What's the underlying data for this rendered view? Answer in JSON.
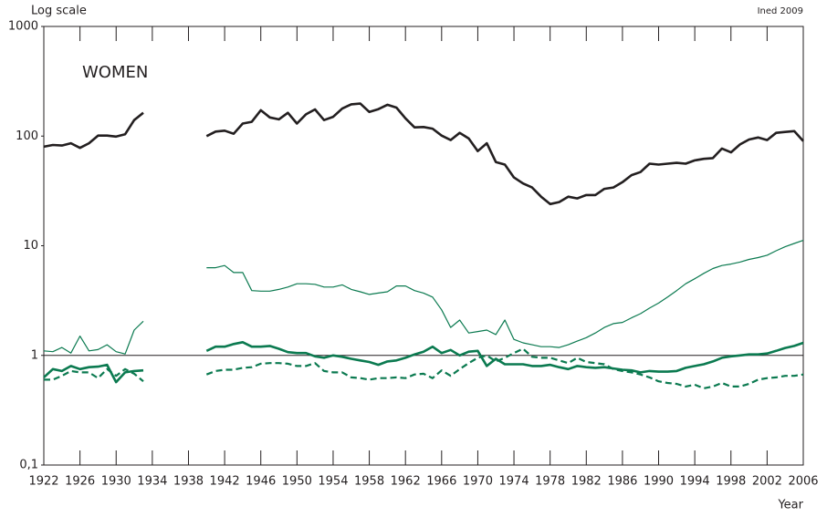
{
  "chart_data": {
    "type": "line",
    "title": "WOMEN",
    "y_axis_label": "Log scale",
    "x_axis_label": "Year",
    "source": "Ined 2009",
    "log_scale": true,
    "grid": false,
    "reference_line": 1,
    "xlim": [
      1922,
      2006
    ],
    "xticks": [
      1922,
      1926,
      1930,
      1934,
      1938,
      1942,
      1946,
      1950,
      1954,
      1958,
      1962,
      1966,
      1970,
      1974,
      1978,
      1982,
      1986,
      1990,
      1994,
      1998,
      2002,
      2006
    ],
    "ylim": [
      0.1,
      1000
    ],
    "yticks": [
      {
        "value": 0.1,
        "label": "0,1"
      },
      1,
      10,
      100,
      1000
    ],
    "x": [
      1922,
      1923,
      1924,
      1925,
      1926,
      1927,
      1928,
      1929,
      1930,
      1931,
      1932,
      1933,
      1934,
      1935,
      1936,
      1937,
      1938,
      1939,
      1940,
      1941,
      1942,
      1943,
      1944,
      1945,
      1946,
      1947,
      1948,
      1949,
      1950,
      1951,
      1952,
      1953,
      1954,
      1955,
      1956,
      1957,
      1958,
      1959,
      1960,
      1961,
      1962,
      1963,
      1964,
      1965,
      1966,
      1967,
      1968,
      1969,
      1970,
      1971,
      1972,
      1973,
      1974,
      1975,
      1976,
      1977,
      1978,
      1979,
      1980,
      1981,
      1982,
      1983,
      1984,
      1985,
      1986,
      1987,
      1988,
      1989,
      1990,
      1991,
      1992,
      1993,
      1994,
      1995,
      1996,
      1997,
      1998,
      1999,
      2000,
      2001,
      2002,
      2003,
      2004,
      2005,
      2006
    ],
    "series": [
      {
        "color": "#231f20",
        "line_width": 2.6,
        "dashed": false,
        "values": [
          80,
          83,
          82,
          86,
          78,
          86,
          101,
          101,
          99,
          104,
          140,
          163,
          null,
          null,
          null,
          null,
          null,
          null,
          100,
          110,
          112,
          105,
          130,
          135,
          172,
          148,
          142,
          163,
          130,
          158,
          175,
          140,
          150,
          178,
          195,
          198,
          166,
          176,
          193,
          182,
          145,
          120,
          121,
          117,
          101,
          92,
          107,
          95,
          73,
          86,
          58,
          55,
          42,
          37,
          34,
          28,
          24,
          25,
          28,
          27,
          29,
          29,
          33,
          34,
          38,
          44,
          47,
          56,
          55,
          56,
          57,
          56,
          60,
          62,
          63,
          77,
          71,
          84,
          93,
          97,
          92,
          107,
          109,
          111,
          90
        ]
      },
      {
        "color": "#0b7a50",
        "line_width": 1.2,
        "dashed": false,
        "values": [
          1.1,
          1.08,
          1.18,
          1.05,
          1.5,
          1.1,
          1.13,
          1.25,
          1.08,
          1.03,
          1.7,
          2.05,
          null,
          null,
          null,
          null,
          null,
          null,
          6.3,
          6.3,
          6.6,
          5.7,
          5.7,
          3.9,
          3.85,
          3.85,
          4.0,
          4.2,
          4.5,
          4.5,
          4.45,
          4.2,
          4.2,
          4.4,
          4.0,
          3.8,
          3.6,
          3.7,
          3.8,
          4.3,
          4.3,
          3.9,
          3.7,
          3.4,
          2.6,
          1.8,
          2.1,
          1.6,
          1.65,
          1.7,
          1.55,
          2.1,
          1.4,
          1.3,
          1.25,
          1.2,
          1.2,
          1.18,
          1.25,
          1.35,
          1.45,
          1.6,
          1.8,
          1.95,
          2.0,
          2.2,
          2.4,
          2.7,
          3.0,
          3.4,
          3.9,
          4.5,
          5.0,
          5.6,
          6.2,
          6.6,
          6.8,
          7.1,
          7.5,
          7.8,
          8.2,
          9.0,
          9.8,
          10.5,
          11.2
        ]
      },
      {
        "color": "#0b7a50",
        "line_width": 2.6,
        "dashed": false,
        "values": [
          0.63,
          0.75,
          0.72,
          0.8,
          0.75,
          0.78,
          0.79,
          0.82,
          0.57,
          0.7,
          0.72,
          0.73,
          null,
          null,
          null,
          null,
          null,
          null,
          1.1,
          1.2,
          1.2,
          1.27,
          1.32,
          1.2,
          1.2,
          1.22,
          1.15,
          1.07,
          1.05,
          1.05,
          0.98,
          0.95,
          1.0,
          0.97,
          0.93,
          0.9,
          0.87,
          0.82,
          0.88,
          0.9,
          0.95,
          1.02,
          1.08,
          1.2,
          1.05,
          1.12,
          1.0,
          1.08,
          1.1,
          0.8,
          0.93,
          0.83,
          0.83,
          0.83,
          0.8,
          0.8,
          0.82,
          0.78,
          0.75,
          0.8,
          0.78,
          0.77,
          0.78,
          0.76,
          0.74,
          0.73,
          0.7,
          0.72,
          0.71,
          0.71,
          0.72,
          0.77,
          0.8,
          0.83,
          0.88,
          0.95,
          0.98,
          1.0,
          1.02,
          1.02,
          1.04,
          1.1,
          1.17,
          1.22,
          1.3
        ]
      },
      {
        "color": "#0b7a50",
        "line_width": 2.2,
        "dashed": true,
        "values": [
          0.6,
          0.6,
          0.65,
          0.72,
          0.7,
          0.7,
          0.62,
          0.75,
          0.65,
          0.75,
          0.68,
          0.58,
          null,
          null,
          null,
          null,
          null,
          null,
          0.67,
          0.72,
          0.74,
          0.74,
          0.77,
          0.78,
          0.84,
          0.85,
          0.85,
          0.84,
          0.8,
          0.8,
          0.85,
          0.72,
          0.7,
          0.7,
          0.63,
          0.62,
          0.6,
          0.62,
          0.62,
          0.63,
          0.62,
          0.67,
          0.68,
          0.62,
          0.73,
          0.65,
          0.75,
          0.85,
          0.95,
          1.0,
          0.88,
          0.95,
          1.05,
          1.15,
          0.97,
          0.95,
          0.95,
          0.9,
          0.85,
          0.95,
          0.87,
          0.85,
          0.83,
          0.75,
          0.72,
          0.7,
          0.67,
          0.63,
          0.58,
          0.56,
          0.55,
          0.52,
          0.54,
          0.5,
          0.52,
          0.56,
          0.52,
          0.52,
          0.55,
          0.6,
          0.62,
          0.63,
          0.65,
          0.65,
          0.67
        ]
      }
    ]
  }
}
